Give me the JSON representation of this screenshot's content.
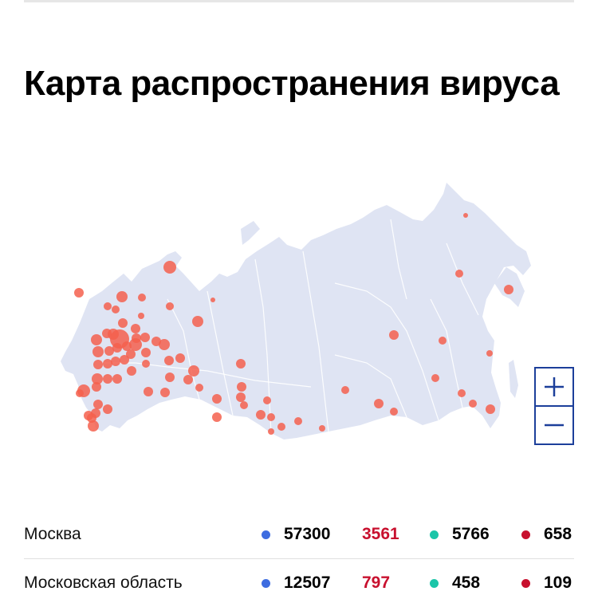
{
  "title": "Карта распространения вируса",
  "map": {
    "land_color": "#dfe4f3",
    "border_color": "#ffffff",
    "marker_color": "#f4604e"
  },
  "zoom": {
    "in_icon": "plus-icon",
    "out_icon": "minus-icon"
  },
  "colors": {
    "cases_dot": "#3d6ce0",
    "new_cases_text": "#c8102e",
    "recovered_dot": "#1bc5a8",
    "deaths_dot": "#c8102e"
  },
  "rows": [
    {
      "region": "Москва",
      "cases": "57300",
      "new_cases": "3561",
      "recovered": "5766",
      "deaths": "658"
    },
    {
      "region": "Московская область",
      "cases": "12507",
      "new_cases": "797",
      "recovered": "458",
      "deaths": "109"
    }
  ]
}
